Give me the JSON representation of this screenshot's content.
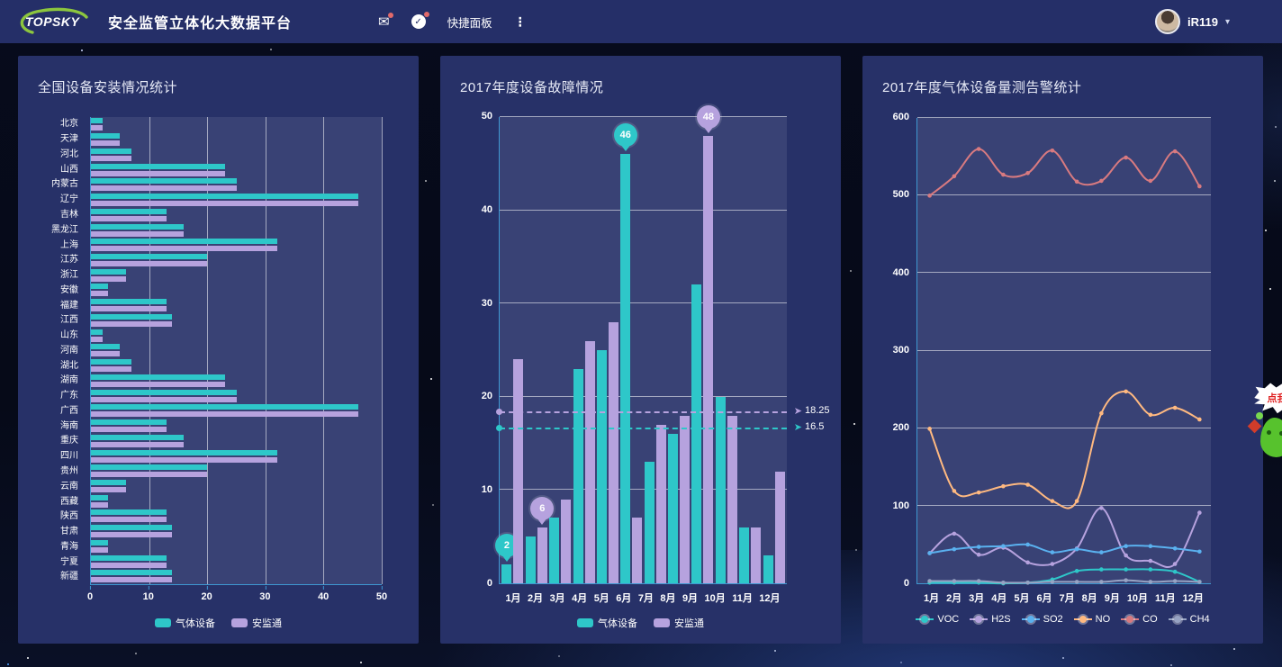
{
  "header": {
    "logo_text": "TOPSKY",
    "title": "安全监管立体化大数据平台",
    "quick_panel_label": "快捷面板",
    "username": "iR119",
    "glyphs": {
      "mail": "✉",
      "check": "✓",
      "menu": "⋮",
      "caret": "▾"
    }
  },
  "mascot": {
    "bubble_text": "点我加"
  },
  "colors": {
    "teal": "#2ec7c9",
    "purple": "#b6a2de",
    "blue": "#5ab1ef",
    "orange": "#ffb980",
    "salmon": "#d87a80",
    "gray": "#97a3c3",
    "header_bg": "#252f68",
    "card_bg": "#273168",
    "axis": "#3e97d1",
    "logo_green": "#8cc63e"
  },
  "chart_data": [
    {
      "type": "bar",
      "orientation": "horizontal",
      "title": "全国设备安装情况统计",
      "categories": [
        "北京",
        "天津",
        "河北",
        "山西",
        "内蒙古",
        "辽宁",
        "吉林",
        "黑龙江",
        "上海",
        "江苏",
        "浙江",
        "安徽",
        "福建",
        "江西",
        "山东",
        "河南",
        "湖北",
        "湖南",
        "广东",
        "广西",
        "海南",
        "重庆",
        "四川",
        "贵州",
        "云南",
        "西藏",
        "陕西",
        "甘肃",
        "青海",
        "宁夏",
        "新疆"
      ],
      "series": [
        {
          "name": "气体设备",
          "color": "#2ec7c9",
          "values": [
            2,
            5,
            7,
            23,
            25,
            46,
            13,
            16,
            32,
            20,
            6,
            3,
            13,
            14,
            2,
            5,
            7,
            23,
            25,
            46,
            13,
            16,
            32,
            20,
            6,
            3,
            13,
            14,
            3,
            13,
            14
          ]
        },
        {
          "name": "安监通",
          "color": "#b6a2de",
          "values": [
            2,
            5,
            7,
            23,
            25,
            46,
            13,
            16,
            32,
            20,
            6,
            3,
            13,
            14,
            2,
            5,
            7,
            23,
            25,
            46,
            13,
            16,
            32,
            20,
            6,
            3,
            13,
            14,
            3,
            13,
            14
          ]
        }
      ],
      "xlim": [
        0,
        50
      ],
      "xticks": [
        0,
        10,
        20,
        30,
        40,
        50
      ],
      "grid": true,
      "legend_position": "bottom"
    },
    {
      "type": "bar",
      "orientation": "vertical",
      "title": "2017年度设备故障情况",
      "categories": [
        "1月",
        "2月",
        "3月",
        "4月",
        "5月",
        "6月",
        "7月",
        "8月",
        "9月",
        "10月",
        "11月",
        "12月"
      ],
      "series": [
        {
          "name": "气体设备",
          "color": "#2ec7c9",
          "values": [
            2,
            5,
            7,
            23,
            25,
            46,
            13,
            16,
            32,
            20,
            6,
            3
          ]
        },
        {
          "name": "安监通",
          "color": "#b6a2de",
          "values": [
            24,
            6,
            9,
            26,
            28,
            7,
            17,
            18,
            48,
            18,
            6,
            12
          ]
        }
      ],
      "ylim": [
        0,
        50
      ],
      "yticks": [
        0,
        10,
        20,
        30,
        40,
        50
      ],
      "markpoints": [
        {
          "series": "气体设备",
          "category": "1月",
          "value": 2
        },
        {
          "series": "安监通",
          "category": "2月",
          "value": 6
        },
        {
          "series": "气体设备",
          "category": "6月",
          "value": 46
        },
        {
          "series": "安监通",
          "category": "9月",
          "value": 48
        }
      ],
      "average_lines": [
        {
          "series": "安监通",
          "value": 18.25,
          "label": "18.25"
        },
        {
          "series": "气体设备",
          "value": 16.5,
          "label": "16.5"
        }
      ],
      "arrow_glyph": "➤",
      "grid": true,
      "legend_position": "bottom"
    },
    {
      "type": "line",
      "smooth": true,
      "title": "2017年度气体设备量测告警统计",
      "categories": [
        "1月",
        "2月",
        "3月",
        "4月",
        "5月",
        "6月",
        "7月",
        "8月",
        "9月",
        "10月",
        "11月",
        "12月"
      ],
      "series": [
        {
          "name": "VOC",
          "color": "#2ec7c9",
          "values": [
            2,
            2,
            2,
            1,
            2,
            6,
            17,
            19,
            19,
            19,
            16,
            3
          ]
        },
        {
          "name": "H2S",
          "color": "#b6a2de",
          "values": [
            40,
            65,
            38,
            47,
            28,
            26,
            46,
            98,
            37,
            30,
            26,
            92
          ]
        },
        {
          "name": "SO2",
          "color": "#5ab1ef",
          "values": [
            40,
            45,
            48,
            49,
            51,
            41,
            45,
            41,
            49,
            49,
            46,
            42
          ]
        },
        {
          "name": "NO",
          "color": "#ffb980",
          "values": [
            200,
            120,
            118,
            126,
            128,
            107,
            107,
            220,
            248,
            218,
            227,
            212
          ]
        },
        {
          "name": "CO",
          "color": "#d87a80",
          "values": [
            500,
            525,
            560,
            527,
            529,
            558,
            518,
            519,
            549,
            519,
            557,
            512
          ]
        },
        {
          "name": "CH4",
          "color": "#97a3c3",
          "values": [
            4,
            4,
            4,
            2,
            2,
            3,
            3,
            3,
            5,
            3,
            4,
            3
          ]
        }
      ],
      "ylim": [
        0,
        600
      ],
      "yticks": [
        0,
        100,
        200,
        300,
        400,
        500,
        600
      ],
      "grid": true,
      "legend_position": "bottom"
    }
  ]
}
